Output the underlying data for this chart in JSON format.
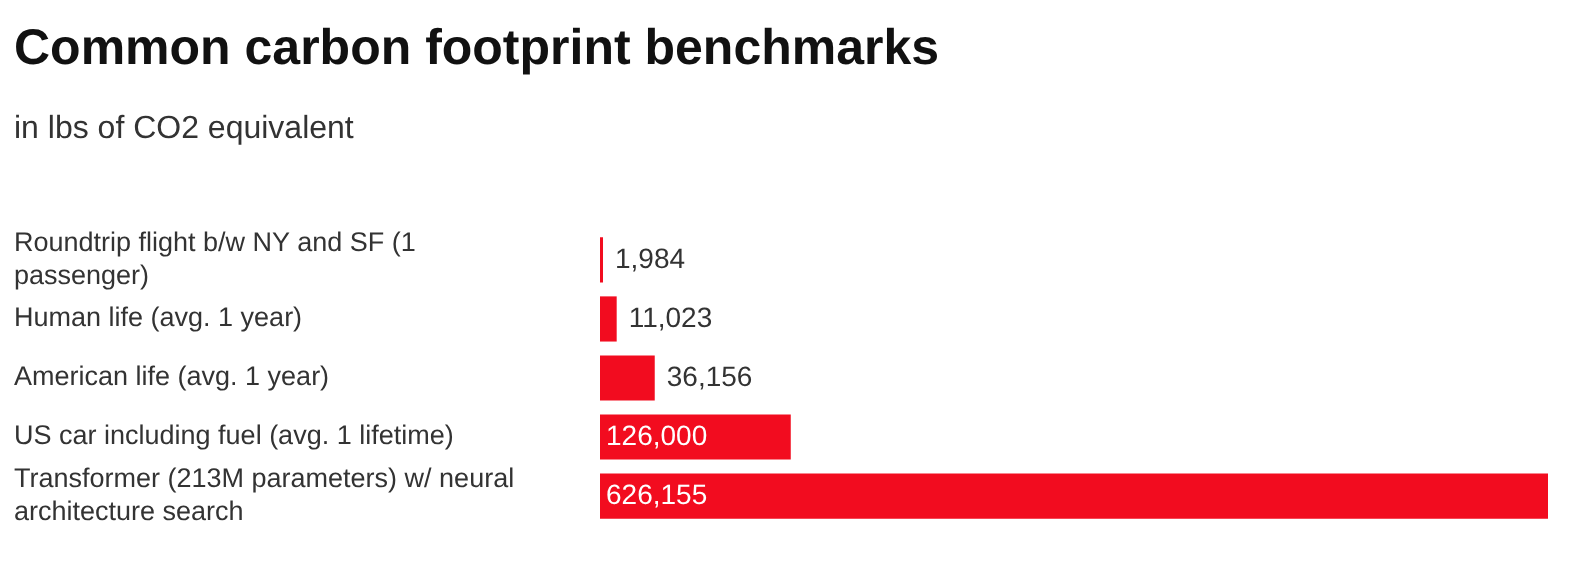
{
  "chart_data": {
    "type": "bar",
    "orientation": "horizontal",
    "title": "Common carbon footprint benchmarks",
    "subtitle": "in lbs of CO2 equivalent",
    "categories": [
      "Roundtrip flight b/w NY and SF (1 passenger)",
      "Human life (avg. 1 year)",
      "American life (avg. 1 year)",
      "US car including fuel (avg. 1 lifetime)",
      "Transformer (213M parameters) w/ neural architecture search"
    ],
    "values": [
      1984,
      11023,
      36156,
      126000,
      626155
    ],
    "value_labels": [
      "1,984",
      "11,023",
      "36,156",
      "126,000",
      "626,155"
    ],
    "color": "#f20c1f"
  }
}
